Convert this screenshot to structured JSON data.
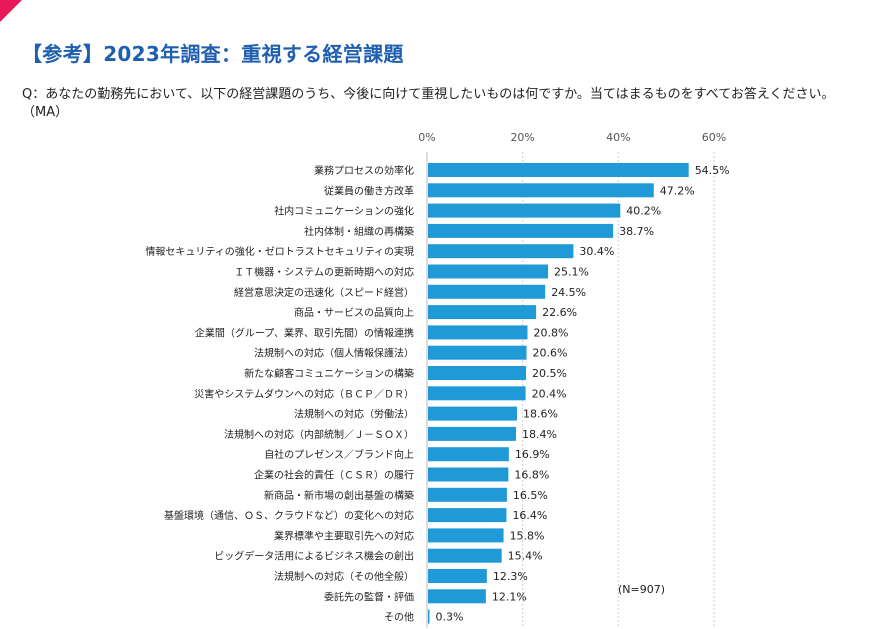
{
  "title": "【参考】2023年調査：重視する経営課題",
  "question": "Q：あなたの勤務先において、以下の経営課題のうち、今後に向けて重視したいものは何ですか。当てはまるものをすべてお答えください。（MA）",
  "sample_note": "(N=907)",
  "colors": {
    "bar": "#1f9ad6",
    "title": "#1f5fb0",
    "accent": "#e8185a"
  },
  "chart_data": {
    "type": "bar",
    "orientation": "horizontal",
    "xlim": [
      0,
      60
    ],
    "ticks": [
      0,
      20,
      40,
      60
    ],
    "tick_labels": [
      "0%",
      "20%",
      "40%",
      "60%"
    ],
    "grid": true,
    "categories": [
      "業務プロセスの効率化",
      "従業員の働き方改革",
      "社内コミュニケーションの強化",
      "社内体制・組織の再構築",
      "情報セキュリティの強化・ゼロトラストセキュリティの実現",
      "ＩＴ機器・システムの更新時期への対応",
      "経営意思決定の迅速化（スピード経営）",
      "商品・サービスの品質向上",
      "企業間（グループ、業界、取引先間）の情報連携",
      "法規制への対応（個人情報保護法）",
      "新たな顧客コミュニケーションの構築",
      "災害やシステムダウンへの対応（ＢＣＰ／ＤＲ）",
      "法規制への対応（労働法）",
      "法規制への対応（内部統制／Ｊ－ＳＯＸ）",
      "自社のプレゼンス／ブランド向上",
      "企業の社会的責任（ＣＳＲ）の履行",
      "新商品・新市場の創出基盤の構築",
      "基盤環境（通信、ＯＳ、クラウドなど）の変化への対応",
      "業界標準や主要取引先への対応",
      "ビッグデータ活用によるビジネス機会の創出",
      "法規制への対応（その他全般）",
      "委託先の監督・評価",
      "その他"
    ],
    "values": [
      54.5,
      47.2,
      40.2,
      38.7,
      30.4,
      25.1,
      24.5,
      22.6,
      20.8,
      20.6,
      20.5,
      20.4,
      18.6,
      18.4,
      16.9,
      16.8,
      16.5,
      16.4,
      15.8,
      15.4,
      12.3,
      12.1,
      0.3
    ],
    "value_labels": [
      "54.5%",
      "47.2%",
      "40.2%",
      "38.7%",
      "30.4%",
      "25.1%",
      "24.5%",
      "22.6%",
      "20.8%",
      "20.6%",
      "20.5%",
      "20.4%",
      "18.6%",
      "18.4%",
      "16.9%",
      "16.8%",
      "16.5%",
      "16.4%",
      "15.8%",
      "15.4%",
      "12.3%",
      "12.1%",
      "0.3%"
    ]
  }
}
